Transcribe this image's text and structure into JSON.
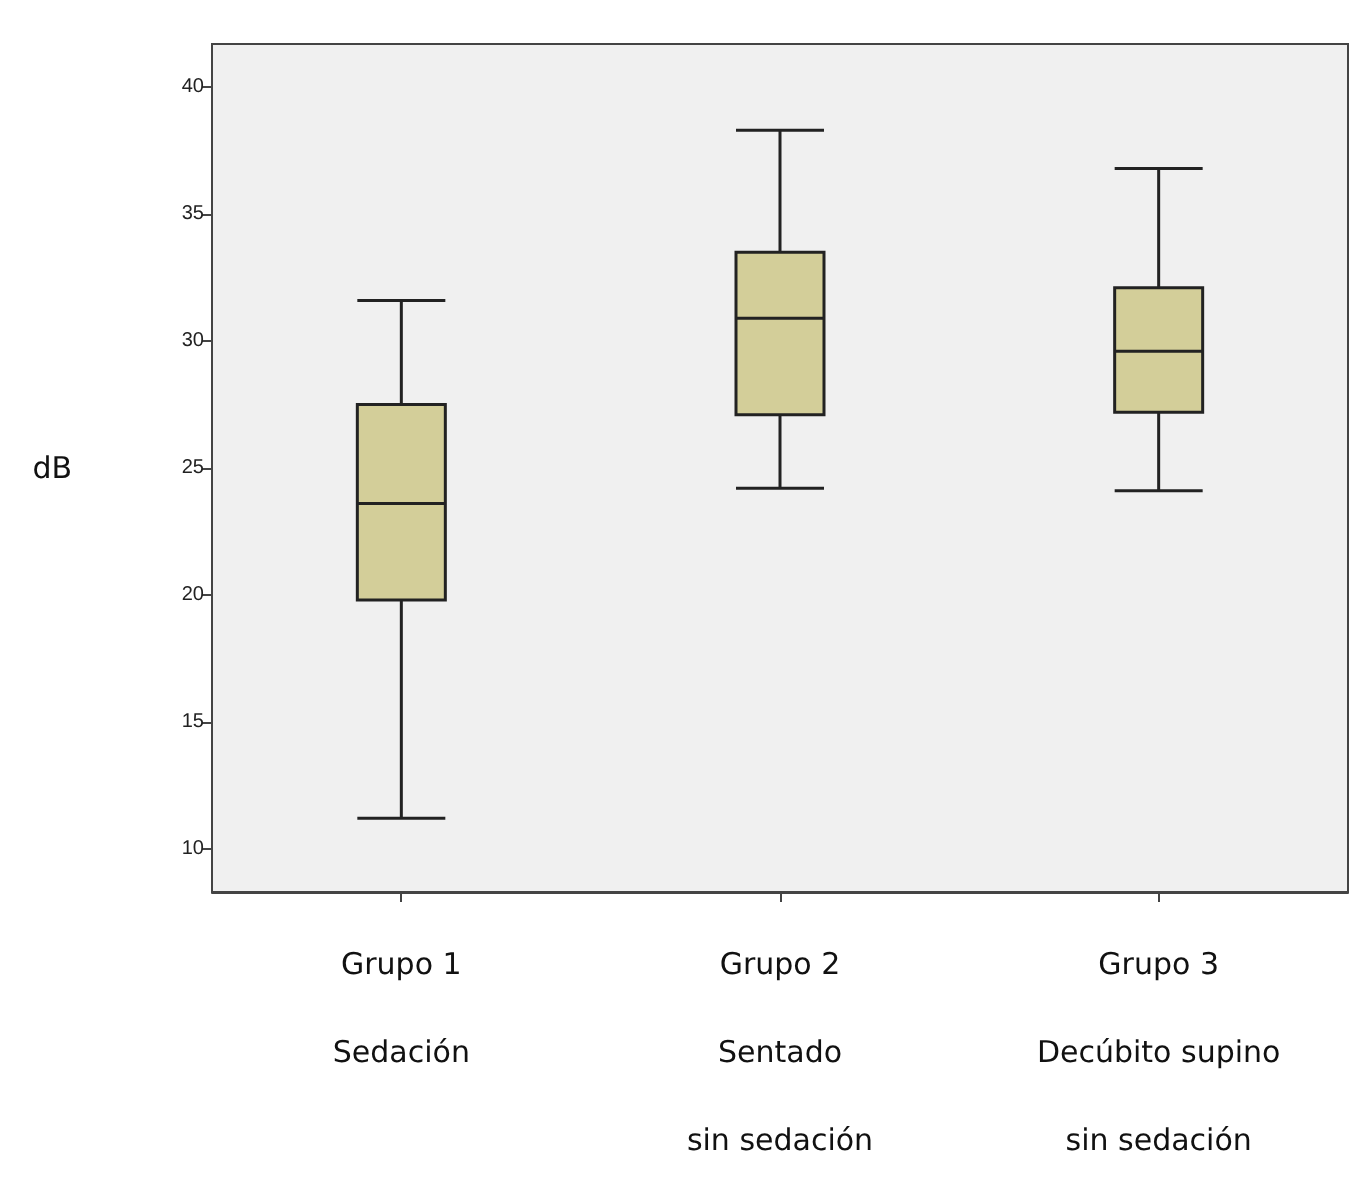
{
  "chart_data": {
    "type": "box",
    "ylabel": "dB",
    "categories": [
      "Grupo 1\nSedación",
      "Grupo 2\nSentado\nsin sedación",
      "Grupo 3\nDecúbito supino\nsin sedación"
    ],
    "color": "#d3ce99",
    "boxes": [
      {
        "low": 11.2,
        "q1": 19.8,
        "median": 23.6,
        "q3": 27.5,
        "high": 31.6
      },
      {
        "low": 24.2,
        "q1": 27.1,
        "median": 30.9,
        "q3": 33.5,
        "high": 38.3
      },
      {
        "low": 24.1,
        "q1": 27.2,
        "median": 29.6,
        "q3": 32.1,
        "high": 36.8
      }
    ],
    "ylim": [
      8.3,
      41.7
    ],
    "yticks": [
      10,
      15,
      20,
      25,
      30,
      35,
      40
    ],
    "grid": false
  }
}
